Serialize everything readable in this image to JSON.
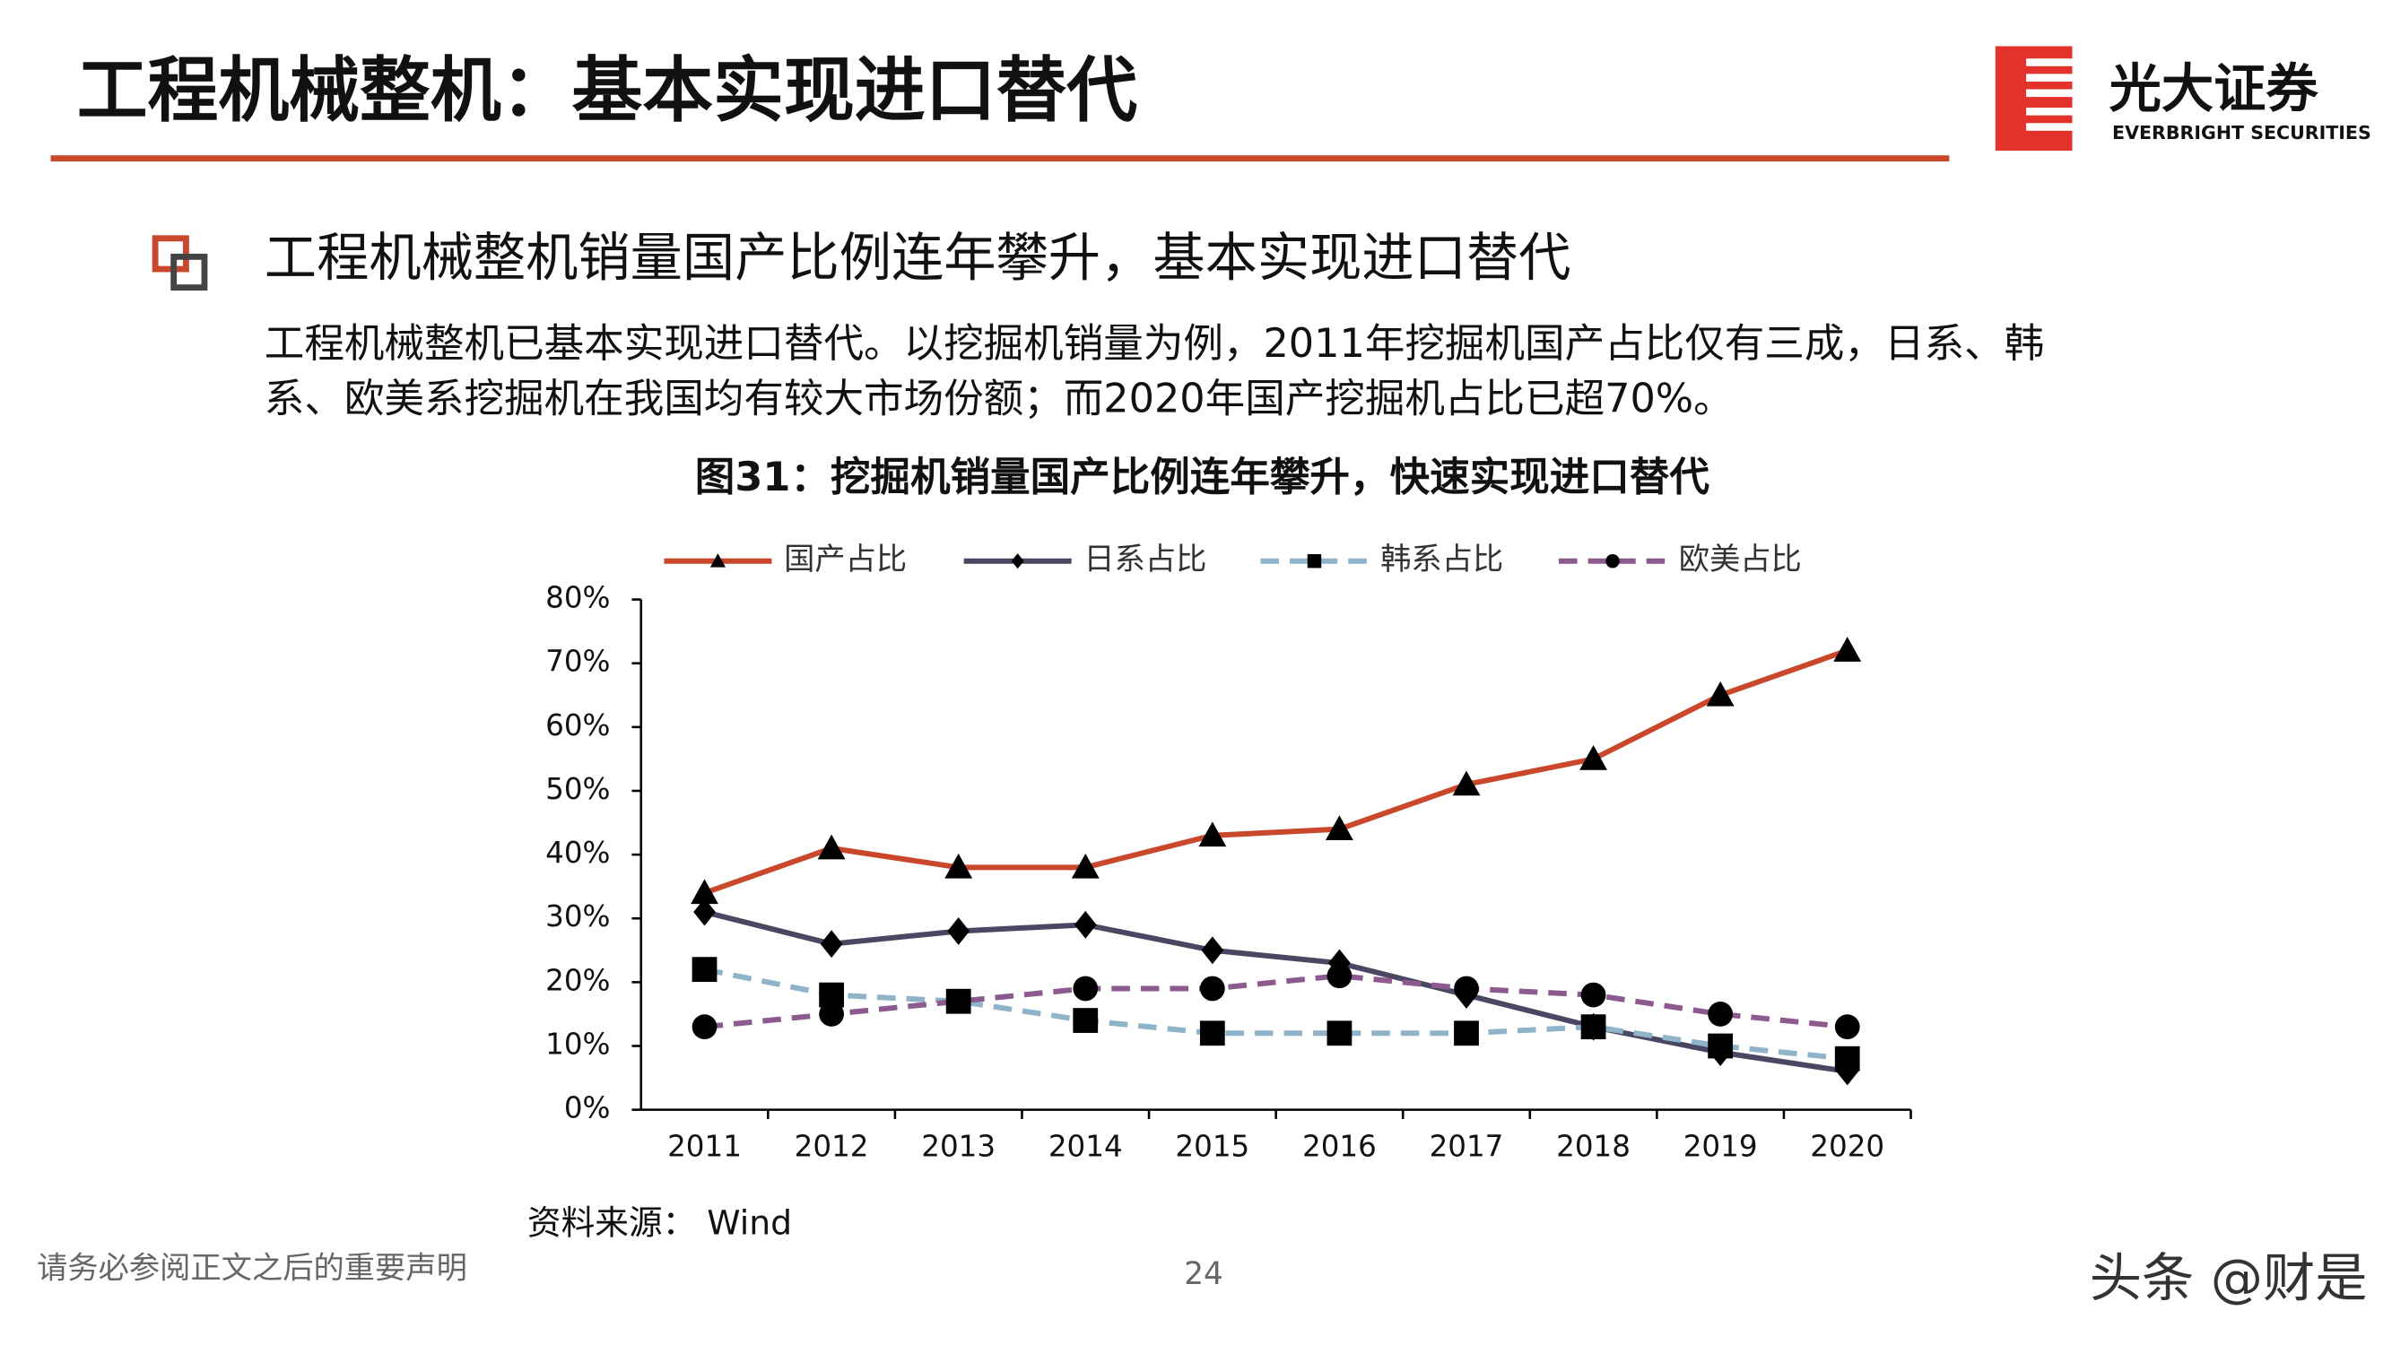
{
  "header": {
    "title": "工程机械整机：基本实现进口替代",
    "logo_name": "光大证券",
    "logo_subtitle": "EVERBRIGHT SECURITIES"
  },
  "bullet": {
    "heading": "工程机械整机销量国产比例连年攀升，基本实现进口替代",
    "body": [
      "工程机械整机已基本实现进口替代。以挖掘机销量为例，2011年挖掘机国产占比仅有三成，日系、韩",
      "系、欧美系挖掘机在我国均有较大市场份额；而2020年国产挖掘机占比已超70%。"
    ]
  },
  "chart_data": {
    "type": "line",
    "title": "图31：挖掘机销量国产比例连年攀升，快速实现进口替代",
    "categories": [
      "2011",
      "2012",
      "2013",
      "2014",
      "2015",
      "2016",
      "2017",
      "2018",
      "2019",
      "2020"
    ],
    "series": [
      {
        "name": "国产占比",
        "color": "#c9472a",
        "marker": "triangle",
        "line_style": "solid",
        "values": [
          34,
          41,
          38,
          38,
          43,
          44,
          51,
          55,
          65,
          72
        ]
      },
      {
        "name": "日系占比",
        "color": "#4a4763",
        "marker": "diamond",
        "line_style": "solid",
        "values": [
          31,
          26,
          28,
          29,
          25,
          23,
          18,
          13,
          9,
          6
        ]
      },
      {
        "name": "韩系占比",
        "color": "#8fb3c9",
        "marker": "square",
        "line_style": "dashed",
        "values": [
          22,
          18,
          17,
          14,
          12,
          12,
          12,
          13,
          10,
          8
        ]
      },
      {
        "name": "欧美占比",
        "color": "#8c5a8e",
        "marker": "circle",
        "line_style": "dashed",
        "values": [
          13,
          15,
          17,
          19,
          19,
          21,
          19,
          18,
          15,
          13
        ]
      }
    ],
    "ylim": [
      0,
      80
    ],
    "yticks": [
      {
        "value": 0,
        "label": "0%"
      },
      {
        "value": 10,
        "label": "10%"
      },
      {
        "value": 20,
        "label": "20%"
      },
      {
        "value": 30,
        "label": "30%"
      },
      {
        "value": 40,
        "label": "40%"
      },
      {
        "value": 50,
        "label": "50%"
      },
      {
        "value": 60,
        "label": "60%"
      },
      {
        "value": 70,
        "label": "70%"
      },
      {
        "value": 80,
        "label": "80%"
      }
    ],
    "grid": false,
    "legend": "top",
    "source": "资料来源： Wind"
  },
  "footer": {
    "disclaimer": "请务必参阅正文之后的重要声明",
    "page": "24",
    "watermark": "头条 @财是"
  }
}
